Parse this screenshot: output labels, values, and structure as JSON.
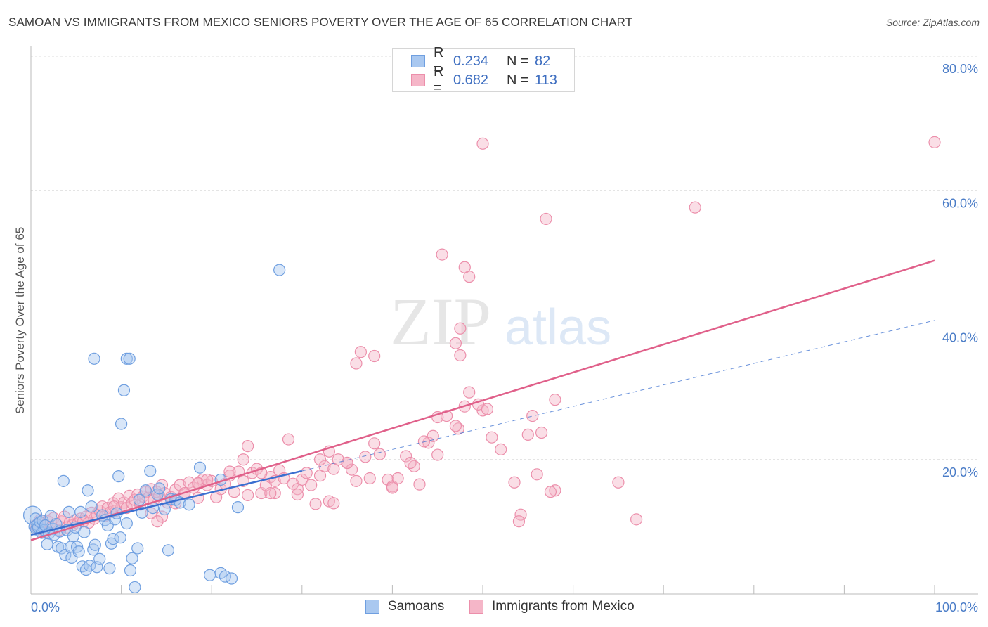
{
  "header": {
    "title": "SAMOAN VS IMMIGRANTS FROM MEXICO SENIORS POVERTY OVER THE AGE OF 65 CORRELATION CHART",
    "source": "Source: ZipAtlas.com"
  },
  "watermark": {
    "zip": "ZIP",
    "atlas": "atlas"
  },
  "legend": {
    "items": [
      {
        "r_label": "R =",
        "r_value": "0.234",
        "n_label": "N =",
        "n_value": "82"
      },
      {
        "r_label": "R =",
        "r_value": "0.682",
        "n_label": "N =",
        "n_value": "113"
      }
    ]
  },
  "bottom_legend": {
    "samoans": "Samoans",
    "mexico": "Immigrants from Mexico"
  },
  "colors": {
    "samoan_fill": "#a9c8f0",
    "samoan_stroke": "#6f9fe0",
    "samoan_line": "#3a6fd0",
    "mexico_fill": "#f5b6c8",
    "mexico_stroke": "#ec8fab",
    "mexico_line": "#e0608a",
    "grid": "#dcdcdc",
    "tick": "#4a7cc7"
  },
  "chart_data": {
    "type": "scatter",
    "title": "SAMOAN VS IMMIGRANTS FROM MEXICO SENIORS POVERTY OVER THE AGE OF 65 CORRELATION CHART",
    "xlabel": "",
    "ylabel": "Seniors Poverty Over the Age of 65",
    "xlim": [
      0,
      100
    ],
    "ylim": [
      0,
      80
    ],
    "x_tick_labels": [
      "0.0%",
      "100.0%"
    ],
    "y_ticks": [
      20,
      40,
      60,
      80
    ],
    "y_tick_labels": [
      "20.0%",
      "40.0%",
      "60.0%",
      "80.0%"
    ],
    "grid": true,
    "legend_position": "top-center",
    "series": [
      {
        "name": "Samoans",
        "r": 0.234,
        "n": 82,
        "trend": {
          "x0": 0,
          "y0": 8.8,
          "x1": 30,
          "y1": 18.3,
          "dashed_to_x": 100,
          "dashed_to_y": 40.7
        },
        "points": [
          [
            0.2,
            11.7
          ],
          [
            0.4,
            10.0
          ],
          [
            0.5,
            11.2
          ],
          [
            0.6,
            9.6
          ],
          [
            0.7,
            10.3
          ],
          [
            0.8,
            9.9
          ],
          [
            1.0,
            10.7
          ],
          [
            1.2,
            9.1
          ],
          [
            1.3,
            10.9
          ],
          [
            1.5,
            9.5
          ],
          [
            1.6,
            10.2
          ],
          [
            1.8,
            7.4
          ],
          [
            2.0,
            9.0
          ],
          [
            2.2,
            11.6
          ],
          [
            2.4,
            9.7
          ],
          [
            2.6,
            8.8
          ],
          [
            2.8,
            10.4
          ],
          [
            3.0,
            7.0
          ],
          [
            3.2,
            9.3
          ],
          [
            3.4,
            6.8
          ],
          [
            3.6,
            16.8
          ],
          [
            3.8,
            5.8
          ],
          [
            4.0,
            9.5
          ],
          [
            4.2,
            12.2
          ],
          [
            4.4,
            7.0
          ],
          [
            4.5,
            5.4
          ],
          [
            4.7,
            8.6
          ],
          [
            4.9,
            9.9
          ],
          [
            5.1,
            7.0
          ],
          [
            5.3,
            6.3
          ],
          [
            5.5,
            12.2
          ],
          [
            5.7,
            4.1
          ],
          [
            5.9,
            9.2
          ],
          [
            6.1,
            3.6
          ],
          [
            6.3,
            15.4
          ],
          [
            6.5,
            4.2
          ],
          [
            6.7,
            13.0
          ],
          [
            6.9,
            6.6
          ],
          [
            7.1,
            7.3
          ],
          [
            7.3,
            4.0
          ],
          [
            7.6,
            5.2
          ],
          [
            7.9,
            11.7
          ],
          [
            8.2,
            11.0
          ],
          [
            8.5,
            10.2
          ],
          [
            8.7,
            3.8
          ],
          [
            8.9,
            7.5
          ],
          [
            9.1,
            8.2
          ],
          [
            9.3,
            11.1
          ],
          [
            9.5,
            12.0
          ],
          [
            9.7,
            17.5
          ],
          [
            9.9,
            8.4
          ],
          [
            10.3,
            30.3
          ],
          [
            10.6,
            10.5
          ],
          [
            11.0,
            3.5
          ],
          [
            11.2,
            5.3
          ],
          [
            11.5,
            1.0
          ],
          [
            11.8,
            6.8
          ],
          [
            12.0,
            14.0
          ],
          [
            12.3,
            12.1
          ],
          [
            12.7,
            15.4
          ],
          [
            13.2,
            18.3
          ],
          [
            13.5,
            12.8
          ],
          [
            14.0,
            14.8
          ],
          [
            14.2,
            15.7
          ],
          [
            14.8,
            12.6
          ],
          [
            15.5,
            14.1
          ],
          [
            10.0,
            25.3
          ],
          [
            7.0,
            35.0
          ],
          [
            10.6,
            35.0
          ],
          [
            10.9,
            35.0
          ],
          [
            15.2,
            6.5
          ],
          [
            16.0,
            14.0
          ],
          [
            16.5,
            13.6
          ],
          [
            17.5,
            13.3
          ],
          [
            18.7,
            18.8
          ],
          [
            21.0,
            17.0
          ],
          [
            22.9,
            12.9
          ],
          [
            19.8,
            2.8
          ],
          [
            21.0,
            3.1
          ],
          [
            21.5,
            2.6
          ],
          [
            22.2,
            2.3
          ],
          [
            27.5,
            48.2
          ]
        ]
      },
      {
        "name": "Immigrants from Mexico",
        "r": 0.682,
        "n": 113,
        "trend": {
          "x0": 0,
          "y0": 8.0,
          "x1": 100,
          "y1": 49.6
        },
        "points": [
          [
            0.5,
            10.2
          ],
          [
            0.8,
            9.6
          ],
          [
            1.0,
            11.0
          ],
          [
            1.3,
            10.5
          ],
          [
            1.6,
            9.2
          ],
          [
            1.9,
            10.8
          ],
          [
            2.2,
            9.8
          ],
          [
            2.5,
            11.3
          ],
          [
            2.8,
            10.4
          ],
          [
            3.1,
            9.5
          ],
          [
            3.4,
            10.8
          ],
          [
            3.7,
            11.5
          ],
          [
            4.0,
            9.9
          ],
          [
            4.3,
            10.6
          ],
          [
            4.6,
            10.2
          ],
          [
            4.9,
            11.0
          ],
          [
            5.2,
            10.5
          ],
          [
            5.5,
            11.2
          ],
          [
            5.8,
            10.8
          ],
          [
            6.1,
            11.5
          ],
          [
            6.4,
            10.6
          ],
          [
            6.7,
            12.1
          ],
          [
            7.0,
            11.2
          ],
          [
            7.3,
            11.8
          ],
          [
            7.6,
            12.4
          ],
          [
            7.9,
            13.0
          ],
          [
            8.2,
            11.6
          ],
          [
            8.5,
            12.8
          ],
          [
            8.8,
            12.2
          ],
          [
            9.1,
            13.5
          ],
          [
            9.4,
            12.4
          ],
          [
            9.7,
            14.2
          ],
          [
            10.0,
            12.9
          ],
          [
            10.3,
            13.6
          ],
          [
            10.6,
            12.8
          ],
          [
            10.9,
            14.6
          ],
          [
            11.2,
            13.5
          ],
          [
            11.5,
            14.0
          ],
          [
            11.8,
            14.8
          ],
          [
            12.1,
            13.3
          ],
          [
            12.4,
            14.5
          ],
          [
            12.7,
            15.2
          ],
          [
            13.0,
            14.3
          ],
          [
            13.3,
            15.6
          ],
          [
            13.6,
            14.0
          ],
          [
            13.9,
            15.2
          ],
          [
            14.2,
            14.6
          ],
          [
            14.5,
            16.2
          ],
          [
            14.8,
            15.0
          ],
          [
            15.1,
            13.6
          ],
          [
            15.5,
            14.4
          ],
          [
            16.0,
            15.5
          ],
          [
            16.5,
            16.2
          ],
          [
            17.0,
            14.8
          ],
          [
            17.5,
            16.6
          ],
          [
            18.0,
            15.8
          ],
          [
            18.5,
            16.4
          ],
          [
            19.0,
            17.0
          ],
          [
            19.5,
            16.2
          ],
          [
            20.0,
            16.8
          ],
          [
            20.5,
            14.4
          ],
          [
            21.0,
            15.6
          ],
          [
            21.5,
            16.4
          ],
          [
            22.0,
            17.6
          ],
          [
            22.5,
            15.2
          ],
          [
            23.0,
            18.2
          ],
          [
            23.5,
            16.8
          ],
          [
            24.0,
            22.0
          ],
          [
            24.5,
            18.0
          ],
          [
            25.0,
            18.6
          ],
          [
            25.5,
            15.0
          ],
          [
            26.0,
            16.2
          ],
          [
            26.5,
            17.4
          ],
          [
            27.0,
            16.8
          ],
          [
            27.5,
            18.4
          ],
          [
            28.0,
            17.2
          ],
          [
            28.5,
            23.0
          ],
          [
            29.0,
            16.4
          ],
          [
            29.5,
            15.6
          ],
          [
            30.0,
            17.0
          ],
          [
            30.5,
            18.0
          ],
          [
            31.0,
            16.2
          ],
          [
            31.5,
            13.4
          ],
          [
            32.0,
            17.6
          ],
          [
            32.5,
            19.0
          ],
          [
            33.0,
            21.2
          ],
          [
            33.5,
            18.6
          ],
          [
            34.0,
            20.0
          ],
          [
            35.0,
            19.5
          ],
          [
            36.0,
            16.8
          ],
          [
            37.0,
            20.4
          ],
          [
            38.0,
            22.4
          ],
          [
            38.6,
            20.8
          ],
          [
            39.5,
            17.0
          ],
          [
            40.0,
            16.0
          ],
          [
            40.6,
            17.2
          ],
          [
            41.5,
            20.5
          ],
          [
            42.4,
            19.0
          ],
          [
            43.0,
            16.3
          ],
          [
            44.0,
            22.5
          ],
          [
            45.0,
            20.7
          ],
          [
            46.0,
            26.5
          ],
          [
            47.3,
            24.6
          ],
          [
            48.0,
            27.9
          ],
          [
            50.0,
            27.3
          ],
          [
            51.0,
            23.3
          ],
          [
            52.0,
            21.5
          ],
          [
            53.5,
            16.6
          ],
          [
            54.2,
            11.8
          ],
          [
            55.5,
            26.5
          ],
          [
            56.0,
            17.8
          ],
          [
            58.0,
            15.4
          ],
          [
            65.0,
            16.6
          ]
        ],
        "extra_points": [
          [
            9.2,
            13.0
          ],
          [
            13.3,
            12.0
          ],
          [
            14.5,
            11.5
          ],
          [
            18.5,
            14.3
          ],
          [
            25.5,
            18.0
          ],
          [
            29.5,
            14.8
          ],
          [
            35.5,
            18.5
          ],
          [
            37.5,
            17.2
          ],
          [
            42.0,
            19.5
          ],
          [
            44.5,
            23.5
          ],
          [
            48.5,
            30.0
          ],
          [
            49.5,
            28.2
          ],
          [
            50.5,
            27.5
          ],
          [
            54.0,
            10.8
          ],
          [
            55.0,
            23.7
          ],
          [
            58.0,
            28.9
          ],
          [
            67.0,
            11.1
          ],
          [
            35.0,
            19.5
          ],
          [
            33.0,
            13.8
          ],
          [
            27.0,
            15.0
          ],
          [
            40.0,
            15.8
          ],
          [
            43.5,
            22.7
          ],
          [
            47.0,
            25.0
          ],
          [
            45.0,
            26.3
          ],
          [
            56.5,
            24.0
          ],
          [
            57.5,
            15.2
          ],
          [
            23.5,
            20.0
          ],
          [
            22.0,
            18.2
          ],
          [
            18.5,
            16.5
          ],
          [
            16.0,
            13.5
          ],
          [
            14.0,
            10.8
          ],
          [
            17.0,
            15.0
          ],
          [
            19.5,
            17.0
          ],
          [
            26.5,
            15.0
          ],
          [
            24.0,
            14.7
          ],
          [
            33.5,
            13.5
          ],
          [
            36.5,
            36.0
          ],
          [
            36.0,
            34.3
          ],
          [
            38.0,
            35.4
          ],
          [
            47.5,
            35.5
          ],
          [
            47.0,
            37.3
          ],
          [
            47.5,
            39.5
          ],
          [
            48.5,
            47.2
          ],
          [
            45.5,
            50.5
          ],
          [
            48.0,
            48.6
          ],
          [
            50.0,
            67.0
          ],
          [
            57.0,
            55.8
          ],
          [
            73.5,
            57.5
          ],
          [
            100,
            67.2
          ],
          [
            32.0,
            20.0
          ]
        ]
      }
    ]
  }
}
